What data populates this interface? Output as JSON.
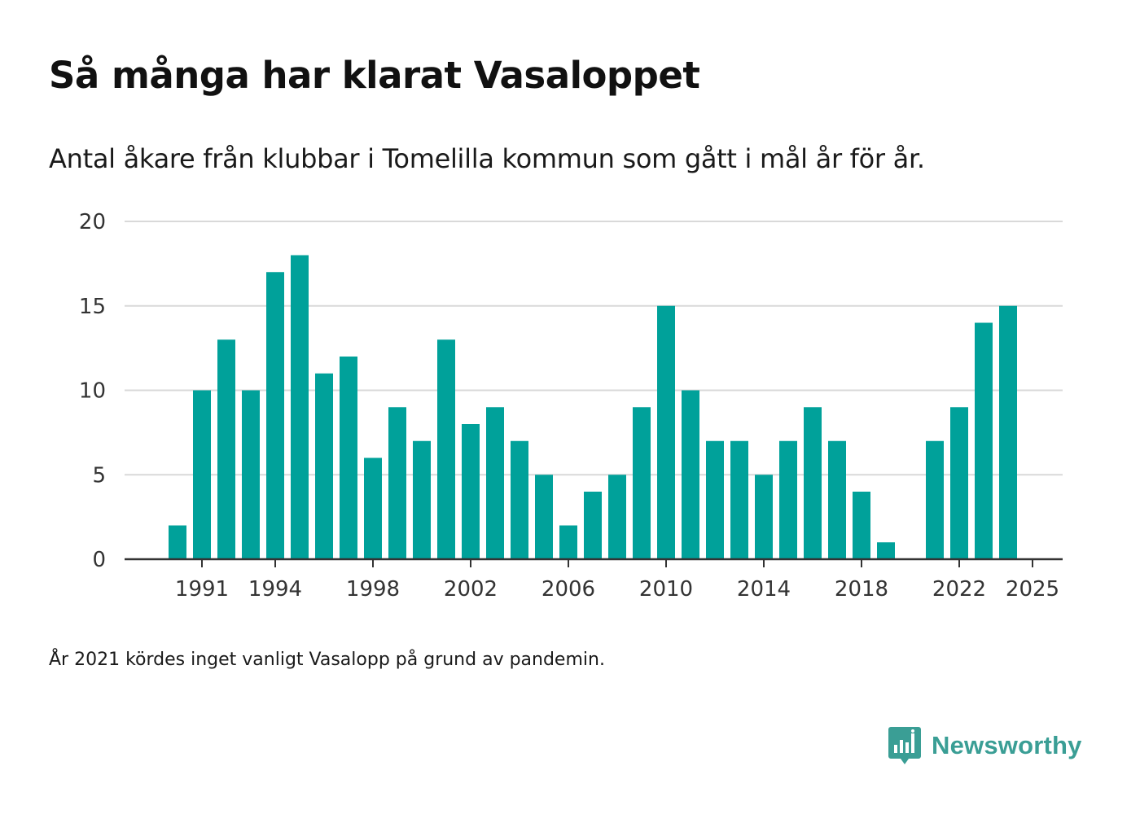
{
  "title": "Så många har klarat Vasaloppet",
  "subtitle": "Antal åkare från klubbar i Tomelilla kommun som gått i mål år för år.",
  "footnote": "År 2021 kördes inget vanligt Vasalopp på grund av pandemin.",
  "brand": {
    "name": "Newsworthy",
    "icon": "newsworthy-logo-icon"
  },
  "colors": {
    "bar": "#00a19a",
    "grid": "#d9d9d9",
    "axis": "#333333",
    "brand": "#3a9e95"
  },
  "chart_data": {
    "type": "bar",
    "title": "Så många har klarat Vasaloppet",
    "subtitle": "Antal åkare från klubbar i Tomelilla kommun som gått i mål år för år.",
    "xlabel": "",
    "ylabel": "",
    "ylim": [
      0,
      20
    ],
    "yticks": [
      0,
      5,
      10,
      15,
      20
    ],
    "xticks": [
      1991,
      1994,
      1998,
      2002,
      2006,
      2010,
      2014,
      2018,
      2022,
      2025
    ],
    "grid": true,
    "legend": "none",
    "categories": [
      1990,
      1991,
      1992,
      1993,
      1994,
      1995,
      1996,
      1997,
      1998,
      1999,
      2000,
      2001,
      2002,
      2003,
      2004,
      2005,
      2006,
      2007,
      2008,
      2009,
      2010,
      2011,
      2012,
      2013,
      2014,
      2015,
      2016,
      2017,
      2018,
      2019,
      2020,
      2021,
      2022,
      2023,
      2024,
      2025
    ],
    "values": [
      2,
      10,
      13,
      10,
      17,
      18,
      11,
      12,
      6,
      9,
      7,
      13,
      8,
      9,
      7,
      5,
      2,
      4,
      5,
      9,
      15,
      10,
      7,
      7,
      5,
      7,
      9,
      7,
      4,
      1,
      null,
      7,
      9,
      14,
      15,
      null
    ]
  }
}
